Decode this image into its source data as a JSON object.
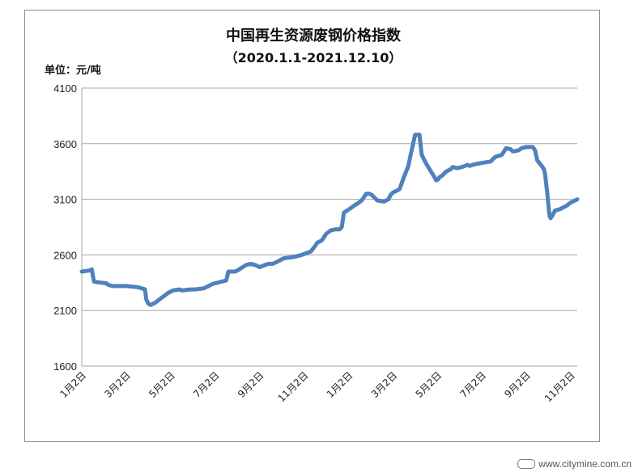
{
  "chart_data": {
    "type": "line",
    "title": "中国再生资源废钢价格指数",
    "subtitle": "（2020.1.1-2021.12.10）",
    "unit_label": "单位：元/吨",
    "xlabel": "",
    "ylabel": "",
    "ylim": [
      1600,
      4100
    ],
    "yticks": [
      1600,
      2100,
      2600,
      3100,
      3600,
      4100
    ],
    "x_range": [
      0,
      22.3
    ],
    "grid": true,
    "legend": "none",
    "series_color": "#4f81bd",
    "categories": [
      "1月2日",
      "3月2日",
      "5月2日",
      "7月2日",
      "9月2日",
      "11月2日",
      "1月2日",
      "3月2日",
      "5月2日",
      "7月2日",
      "9月2日",
      "11月2日"
    ],
    "category_x": [
      0,
      2,
      4,
      6,
      8,
      10,
      12,
      14,
      16,
      18,
      20,
      22
    ],
    "series": [
      {
        "x": [
          0,
          0.35,
          0.45,
          0.55,
          0.7,
          1.1,
          1.2,
          1.4,
          2.0,
          2.5,
          2.7,
          2.85,
          2.9,
          3.0,
          3.1,
          3.3,
          3.5,
          3.7,
          3.9,
          4.1,
          4.4,
          4.5,
          4.9,
          5.1,
          5.5,
          5.9,
          6.3,
          6.5,
          6.6,
          6.9,
          7.0,
          7.4,
          7.6,
          7.8,
          8.0,
          8.4,
          8.6,
          8.8,
          9.1,
          9.5,
          9.9,
          10.3,
          10.5,
          10.6,
          10.8,
          11.0,
          11.2,
          11.4,
          11.6,
          11.7,
          11.8,
          12.1,
          12.3,
          12.4,
          12.6,
          12.8,
          12.95,
          13.05,
          13.3,
          13.6,
          13.8,
          13.9,
          14.0,
          14.3,
          14.5,
          14.7,
          14.8,
          15.0,
          15.2,
          15.3,
          15.5,
          15.9,
          15.95,
          16.05,
          16.1,
          16.2,
          16.4,
          16.6,
          16.7,
          16.9,
          17.1,
          17.25,
          17.35,
          17.45,
          17.6,
          17.8,
          18.1,
          18.4,
          18.6,
          18.9,
          19.1,
          19.3,
          19.4,
          19.65,
          19.8,
          20.0,
          20.15,
          20.3,
          20.4,
          20.5,
          20.7,
          20.8,
          20.85,
          20.95,
          21.05,
          21.1,
          21.2,
          21.3,
          21.5,
          21.6,
          21.8,
          22.0,
          22.2,
          22.3
        ],
        "values": [
          2450,
          2460,
          2470,
          2360,
          2355,
          2345,
          2330,
          2320,
          2320,
          2310,
          2300,
          2290,
          2200,
          2160,
          2150,
          2170,
          2200,
          2230,
          2260,
          2280,
          2290,
          2280,
          2290,
          2290,
          2300,
          2340,
          2360,
          2370,
          2450,
          2450,
          2460,
          2510,
          2520,
          2510,
          2490,
          2520,
          2520,
          2540,
          2570,
          2580,
          2600,
          2630,
          2680,
          2710,
          2730,
          2790,
          2820,
          2830,
          2830,
          2850,
          2980,
          3020,
          3050,
          3060,
          3090,
          3150,
          3150,
          3140,
          3090,
          3080,
          3100,
          3140,
          3160,
          3190,
          3300,
          3400,
          3500,
          3680,
          3680,
          3500,
          3420,
          3290,
          3270,
          3280,
          3300,
          3310,
          3350,
          3370,
          3390,
          3380,
          3390,
          3400,
          3410,
          3400,
          3410,
          3420,
          3430,
          3440,
          3480,
          3500,
          3560,
          3550,
          3530,
          3540,
          3560,
          3570,
          3570,
          3570,
          3540,
          3450,
          3400,
          3370,
          3330,
          3150,
          2950,
          2930,
          2960,
          3000,
          3010,
          3020,
          3040,
          3070,
          3090,
          3100
        ]
      }
    ]
  },
  "watermark": {
    "text": "www.citymine.com.cn"
  }
}
